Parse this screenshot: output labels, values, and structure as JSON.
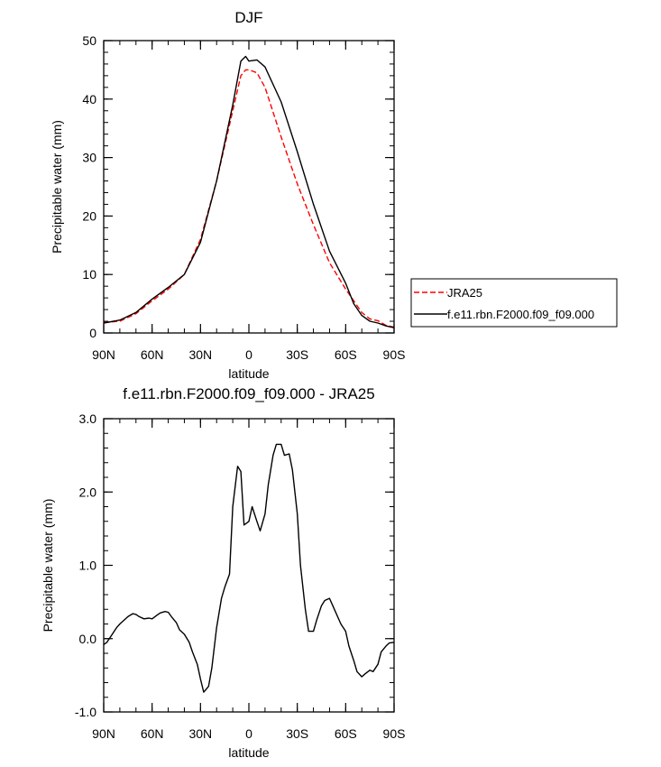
{
  "chart_data": [
    {
      "type": "line",
      "title": "DJF",
      "xlabel": "latitude",
      "ylabel": "Precipitable water (mm)",
      "xlim": [
        90,
        -90
      ],
      "ylim": [
        0,
        50
      ],
      "x_ticks": [
        90,
        60,
        30,
        0,
        -30,
        -60,
        -90
      ],
      "x_tick_labels": [
        "90N",
        "60N",
        "30N",
        "0",
        "30S",
        "60S",
        "90S"
      ],
      "y_ticks": [
        0,
        10,
        20,
        30,
        40,
        50
      ],
      "y_tick_labels": [
        "0",
        "10",
        "20",
        "30",
        "40",
        "50"
      ],
      "legend": {
        "position": "outside-right",
        "entries": [
          {
            "label": "JRA25",
            "color": "#ff0000",
            "dash": "dashed"
          },
          {
            "label": "f.e11.rbn.F2000.f09_f09.000",
            "color": "#000000",
            "dash": "solid"
          }
        ]
      },
      "x": [
        90,
        80,
        70,
        60,
        50,
        40,
        30,
        20,
        10,
        5,
        2,
        0,
        -5,
        -10,
        -20,
        -30,
        -40,
        -50,
        -60,
        -65,
        -70,
        -75,
        -80,
        -85,
        -90
      ],
      "series": [
        {
          "name": "JRA25",
          "color": "#ff0000",
          "dash": "dashed",
          "values": [
            1.8,
            2.0,
            3.3,
            5.5,
            7.5,
            10.0,
            16.0,
            26.0,
            38.0,
            44.0,
            45.0,
            45.0,
            44.5,
            42.0,
            33.5,
            25.5,
            18.5,
            12.0,
            7.5,
            5.5,
            3.5,
            2.4,
            2.1,
            1.3,
            1.0
          ]
        },
        {
          "name": "f.e11.rbn.F2000.f09_f09.000",
          "color": "#000000",
          "dash": "solid",
          "values": [
            1.7,
            2.2,
            3.5,
            5.8,
            7.8,
            10.0,
            15.5,
            26.0,
            39.0,
            46.5,
            47.3,
            46.5,
            46.7,
            45.5,
            39.5,
            31.0,
            22.0,
            14.0,
            8.5,
            5.0,
            3.0,
            2.0,
            1.7,
            1.2,
            0.9
          ]
        }
      ]
    },
    {
      "type": "line",
      "title": "f.e11.rbn.F2000.f09_f09.000 - JRA25",
      "xlabel": "latitude",
      "ylabel": "Precipitable water (mm)",
      "xlim": [
        90,
        -90
      ],
      "ylim": [
        -1.0,
        3.0
      ],
      "x_ticks": [
        90,
        60,
        30,
        0,
        -30,
        -60,
        -90
      ],
      "x_tick_labels": [
        "90N",
        "60N",
        "30N",
        "0",
        "30S",
        "60S",
        "90S"
      ],
      "y_ticks": [
        -1.0,
        0.0,
        1.0,
        2.0,
        3.0
      ],
      "y_tick_labels": [
        "-1.0",
        "0.0",
        "1.0",
        "2.0",
        "3.0"
      ],
      "x": [
        90,
        88,
        85,
        82,
        80,
        77,
        75,
        72,
        70,
        68,
        65,
        62,
        60,
        57,
        55,
        52,
        50,
        48,
        45,
        43,
        40,
        37,
        35,
        32,
        30,
        28,
        25,
        23,
        20,
        17,
        15,
        12,
        10,
        7,
        5,
        3,
        0,
        -2,
        -5,
        -7,
        -10,
        -12,
        -15,
        -17,
        -20,
        -22,
        -25,
        -27,
        -30,
        -32,
        -35,
        -37,
        -40,
        -42,
        -45,
        -47,
        -50,
        -52,
        -55,
        -57,
        -60,
        -62,
        -65,
        -67,
        -70,
        -72,
        -75,
        -77,
        -80,
        -82,
        -85,
        -87,
        -90
      ],
      "series": [
        {
          "name": "f.e11.rbn.F2000.f09_f09.000 - JRA25",
          "color": "#000000",
          "dash": "solid",
          "values": [
            -0.08,
            -0.05,
            0.05,
            0.15,
            0.2,
            0.26,
            0.3,
            0.34,
            0.33,
            0.3,
            0.27,
            0.28,
            0.27,
            0.32,
            0.35,
            0.37,
            0.36,
            0.3,
            0.22,
            0.12,
            0.06,
            -0.05,
            -0.18,
            -0.35,
            -0.55,
            -0.73,
            -0.65,
            -0.4,
            0.15,
            0.55,
            0.7,
            0.88,
            1.8,
            2.35,
            2.28,
            1.55,
            1.6,
            1.8,
            1.6,
            1.47,
            1.7,
            2.1,
            2.5,
            2.65,
            2.65,
            2.5,
            2.52,
            2.3,
            1.7,
            1.0,
            0.4,
            0.1,
            0.1,
            0.25,
            0.45,
            0.52,
            0.55,
            0.45,
            0.3,
            0.2,
            0.1,
            -0.1,
            -0.3,
            -0.45,
            -0.52,
            -0.48,
            -0.43,
            -0.45,
            -0.35,
            -0.18,
            -0.1,
            -0.06,
            -0.05
          ]
        }
      ]
    }
  ]
}
